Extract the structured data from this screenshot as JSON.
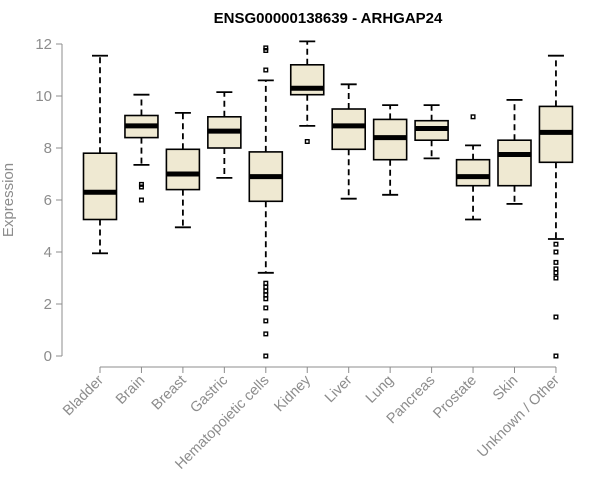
{
  "chart_data": {
    "type": "box",
    "title": "ENSG00000138639 - ARHGAP24",
    "ylabel": "Expression",
    "xlabel": "",
    "ylim": [
      0,
      12
    ],
    "yticks": [
      0,
      2,
      4,
      6,
      8,
      10,
      12
    ],
    "grid": false,
    "categories": [
      "Bladder",
      "Brain",
      "Breast",
      "Gastric",
      "Hematopoietic cells",
      "Kidney",
      "Liver",
      "Lung",
      "Pancreas",
      "Prostate",
      "Skin",
      "Unknown / Other"
    ],
    "boxes": [
      {
        "whisker_low": 3.95,
        "q1": 5.25,
        "median": 6.3,
        "q3": 7.8,
        "whisker_high": 11.55,
        "outliers": []
      },
      {
        "whisker_low": 7.35,
        "q1": 8.4,
        "median": 8.85,
        "q3": 9.25,
        "whisker_high": 10.05,
        "outliers": [
          6.6,
          6.5,
          6.0
        ]
      },
      {
        "whisker_low": 4.95,
        "q1": 6.4,
        "median": 7.0,
        "q3": 7.95,
        "whisker_high": 9.35,
        "outliers": []
      },
      {
        "whisker_low": 6.85,
        "q1": 8.0,
        "median": 8.65,
        "q3": 9.2,
        "whisker_high": 10.15,
        "outliers": []
      },
      {
        "whisker_low": 3.2,
        "q1": 5.95,
        "median": 6.9,
        "q3": 7.85,
        "whisker_high": 10.6,
        "outliers": [
          11.85,
          11.75,
          11.0,
          2.8,
          2.65,
          2.5,
          2.35,
          2.2,
          1.85,
          1.35,
          0.85,
          0.0
        ]
      },
      {
        "whisker_low": 8.85,
        "q1": 10.05,
        "median": 10.3,
        "q3": 11.2,
        "whisker_high": 12.1,
        "outliers": [
          8.25
        ]
      },
      {
        "whisker_low": 6.05,
        "q1": 7.95,
        "median": 8.85,
        "q3": 9.5,
        "whisker_high": 10.45,
        "outliers": []
      },
      {
        "whisker_low": 6.2,
        "q1": 7.55,
        "median": 8.4,
        "q3": 9.1,
        "whisker_high": 9.65,
        "outliers": []
      },
      {
        "whisker_low": 7.6,
        "q1": 8.3,
        "median": 8.75,
        "q3": 9.05,
        "whisker_high": 9.65,
        "outliers": []
      },
      {
        "whisker_low": 5.25,
        "q1": 6.55,
        "median": 6.9,
        "q3": 7.55,
        "whisker_high": 8.1,
        "outliers": [
          9.2
        ]
      },
      {
        "whisker_low": 5.85,
        "q1": 6.55,
        "median": 7.75,
        "q3": 8.3,
        "whisker_high": 9.85,
        "outliers": []
      },
      {
        "whisker_low": 4.5,
        "q1": 7.45,
        "median": 8.6,
        "q3": 9.6,
        "whisker_high": 11.55,
        "outliers": [
          4.3,
          4.0,
          3.6,
          3.35,
          3.2,
          3.0,
          1.5,
          0.0
        ]
      }
    ],
    "colors": {
      "box_fill": "#efe9d2",
      "line": "#000000",
      "axis": "#8c8c8c"
    }
  }
}
